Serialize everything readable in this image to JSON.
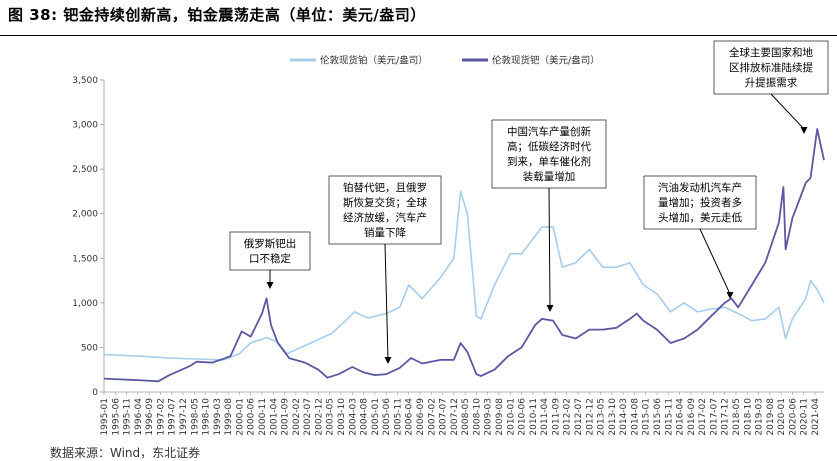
{
  "header": {
    "title": "图 38: 钯金持续创新高，铂金震荡走高（单位：美元/盎司）"
  },
  "footer": {
    "source": "数据来源：Wind，东北证券"
  },
  "colors": {
    "platinum": "#a6cdea",
    "palladium": "#5a58a0",
    "axis": "#999999"
  },
  "chart_data": {
    "type": "line",
    "title": "钯金持续创新高，铂金震荡走高（单位：美元/盎司）",
    "ylim": [
      0,
      3500
    ],
    "yticks": [
      "0",
      "500",
      "1,000",
      "1,500",
      "2,000",
      "2,500",
      "3,000",
      "3,500"
    ],
    "x_range": [
      "1995-01",
      "2021-08"
    ],
    "legend_position": "top-center",
    "grid": false,
    "xtick_labels": [
      "1995-01",
      "1995-06",
      "1995-11",
      "1996-04",
      "1996-09",
      "1997-02",
      "1997-07",
      "1997-12",
      "1998-05",
      "1998-10",
      "1999-03",
      "1999-08",
      "2000-01",
      "2000-06",
      "2000-11",
      "2001-04",
      "2001-09",
      "2002-02",
      "2002-07",
      "2002-12",
      "2003-05",
      "2003-10",
      "2004-03",
      "2004-08",
      "2005-01",
      "2005-06",
      "2005-11",
      "2006-04",
      "2006-09",
      "2007-02",
      "2007-07",
      "2007-12",
      "2008-05",
      "2008-10",
      "2009-03",
      "2009-08",
      "2010-01",
      "2010-06",
      "2010-11",
      "2011-04",
      "2011-09",
      "2012-02",
      "2012-07",
      "2012-12",
      "2013-05",
      "2013-10",
      "2014-03",
      "2014-08",
      "2015-01",
      "2015-06",
      "2015-11",
      "2016-04",
      "2016-09",
      "2017-02",
      "2017-07",
      "2017-12",
      "2018-05",
      "2018-10",
      "2019-03",
      "2019-08",
      "2020-01",
      "2020-06",
      "2020-11",
      "2021-04"
    ],
    "series": [
      {
        "name": "伦敦现货铂（美元/盎司）",
        "color": "#a6cdea",
        "points": [
          [
            "1995-01",
            420
          ],
          [
            "1996-06",
            400
          ],
          [
            "1997-06",
            380
          ],
          [
            "1998-06",
            370
          ],
          [
            "1999-06",
            360
          ],
          [
            "2000-01",
            430
          ],
          [
            "2000-06",
            550
          ],
          [
            "2001-01",
            610
          ],
          [
            "2001-06",
            560
          ],
          [
            "2001-10",
            430
          ],
          [
            "2002-06",
            520
          ],
          [
            "2003-01",
            600
          ],
          [
            "2003-06",
            660
          ],
          [
            "2003-12",
            800
          ],
          [
            "2004-04",
            900
          ],
          [
            "2004-10",
            830
          ],
          [
            "2005-06",
            880
          ],
          [
            "2005-12",
            950
          ],
          [
            "2006-04",
            1200
          ],
          [
            "2006-10",
            1050
          ],
          [
            "2007-06",
            1280
          ],
          [
            "2007-12",
            1500
          ],
          [
            "2008-03",
            2250
          ],
          [
            "2008-06",
            2000
          ],
          [
            "2008-10",
            850
          ],
          [
            "2008-12",
            820
          ],
          [
            "2009-06",
            1200
          ],
          [
            "2010-01",
            1550
          ],
          [
            "2010-06",
            1550
          ],
          [
            "2010-12",
            1750
          ],
          [
            "2011-03",
            1850
          ],
          [
            "2011-08",
            1850
          ],
          [
            "2011-12",
            1400
          ],
          [
            "2012-06",
            1450
          ],
          [
            "2012-12",
            1600
          ],
          [
            "2013-06",
            1400
          ],
          [
            "2013-12",
            1400
          ],
          [
            "2014-06",
            1450
          ],
          [
            "2014-12",
            1200
          ],
          [
            "2015-06",
            1100
          ],
          [
            "2015-12",
            900
          ],
          [
            "2016-06",
            1000
          ],
          [
            "2016-12",
            900
          ],
          [
            "2017-06",
            930
          ],
          [
            "2017-12",
            950
          ],
          [
            "2018-06",
            880
          ],
          [
            "2018-12",
            800
          ],
          [
            "2019-06",
            820
          ],
          [
            "2019-12",
            950
          ],
          [
            "2020-03",
            600
          ],
          [
            "2020-06",
            820
          ],
          [
            "2020-12",
            1050
          ],
          [
            "2021-02",
            1250
          ],
          [
            "2021-05",
            1150
          ],
          [
            "2021-08",
            1000
          ]
        ]
      },
      {
        "name": "伦敦现货钯（美元/盎司）",
        "color": "#5a58a0",
        "points": [
          [
            "1995-01",
            150
          ],
          [
            "1996-06",
            130
          ],
          [
            "1997-01",
            120
          ],
          [
            "1997-06",
            190
          ],
          [
            "1998-03",
            290
          ],
          [
            "1998-06",
            340
          ],
          [
            "1999-01",
            330
          ],
          [
            "1999-09",
            400
          ],
          [
            "2000-02",
            680
          ],
          [
            "2000-06",
            620
          ],
          [
            "2000-11",
            880
          ],
          [
            "2001-01",
            1050
          ],
          [
            "2001-03",
            750
          ],
          [
            "2001-06",
            550
          ],
          [
            "2001-11",
            380
          ],
          [
            "2002-06",
            330
          ],
          [
            "2002-12",
            250
          ],
          [
            "2003-04",
            160
          ],
          [
            "2003-09",
            200
          ],
          [
            "2004-03",
            280
          ],
          [
            "2004-08",
            220
          ],
          [
            "2005-01",
            190
          ],
          [
            "2005-06",
            200
          ],
          [
            "2005-12",
            270
          ],
          [
            "2006-05",
            380
          ],
          [
            "2006-10",
            320
          ],
          [
            "2007-06",
            360
          ],
          [
            "2007-12",
            360
          ],
          [
            "2008-03",
            550
          ],
          [
            "2008-06",
            450
          ],
          [
            "2008-10",
            200
          ],
          [
            "2008-12",
            180
          ],
          [
            "2009-06",
            250
          ],
          [
            "2009-12",
            400
          ],
          [
            "2010-06",
            500
          ],
          [
            "2010-12",
            750
          ],
          [
            "2011-03",
            820
          ],
          [
            "2011-08",
            800
          ],
          [
            "2011-12",
            640
          ],
          [
            "2012-06",
            600
          ],
          [
            "2012-12",
            700
          ],
          [
            "2013-06",
            700
          ],
          [
            "2013-12",
            720
          ],
          [
            "2014-06",
            820
          ],
          [
            "2014-09",
            880
          ],
          [
            "2014-12",
            800
          ],
          [
            "2015-06",
            700
          ],
          [
            "2015-12",
            550
          ],
          [
            "2016-06",
            600
          ],
          [
            "2016-12",
            700
          ],
          [
            "2017-06",
            850
          ],
          [
            "2017-12",
            1000
          ],
          [
            "2018-03",
            1050
          ],
          [
            "2018-06",
            950
          ],
          [
            "2018-12",
            1200
          ],
          [
            "2019-06",
            1450
          ],
          [
            "2019-12",
            1900
          ],
          [
            "2020-02",
            2300
          ],
          [
            "2020-03",
            1600
          ],
          [
            "2020-06",
            1950
          ],
          [
            "2020-12",
            2350
          ],
          [
            "2021-02",
            2400
          ],
          [
            "2021-05",
            2950
          ],
          [
            "2021-08",
            2600
          ]
        ]
      }
    ],
    "annotations": [
      {
        "id": "russia",
        "lines": [
          "俄罗斯钯出",
          "口不稳定"
        ]
      },
      {
        "id": "substitute",
        "lines": [
          "铂替代钯，且俄罗",
          "斯恢复交货；全球",
          "经济放缓，汽车产",
          "销量下降"
        ]
      },
      {
        "id": "china",
        "lines": [
          "中国汽车产量创新",
          "高；低碳经济时代",
          "到来，单车催化剂",
          "装载量增加"
        ]
      },
      {
        "id": "gasoline",
        "lines": [
          "汽油发动机汽车产",
          "量增加；投资者多",
          "头增加，美元走低"
        ]
      },
      {
        "id": "emission",
        "lines": [
          "全球主要国家和地",
          "区排放标准陆续提",
          "升提振需求"
        ]
      }
    ]
  }
}
